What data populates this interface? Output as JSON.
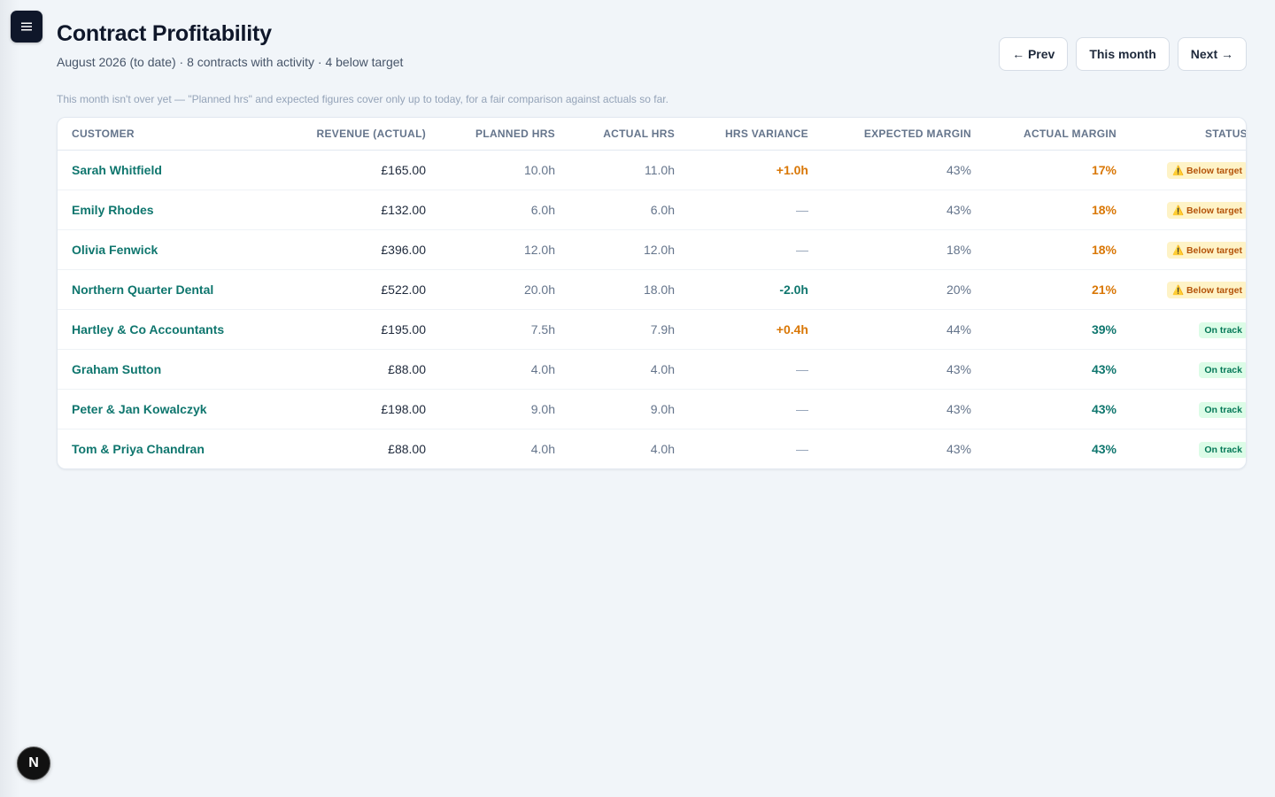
{
  "header": {
    "title": "Contract Profitability",
    "subtitle": "August 2026 (to date) · 8 contracts with activity · 4 below target",
    "note": "This month isn't over yet — \"Planned hrs\" and expected figures cover only up to today, for a fair comparison against actuals so far.",
    "menu_icon": "hamburger-menu-icon"
  },
  "nav": {
    "prev_label": "← Prev",
    "this_month_label": "This month",
    "next_label": "Next →"
  },
  "table": {
    "columns": [
      "Customer",
      "Revenue (actual)",
      "Planned hrs",
      "Actual hrs",
      "Hrs variance",
      "Expected margin",
      "Actual margin",
      "Status"
    ],
    "rows": [
      {
        "customer": "Sarah Whitfield",
        "revenue": "£165.00",
        "planned": "10.0h",
        "actual": "11.0h",
        "variance": "+1.0h",
        "expected": "43%",
        "margin": "17%",
        "status": "⚠️ Below target"
      },
      {
        "customer": "Emily Rhodes",
        "revenue": "£132.00",
        "planned": "6.0h",
        "actual": "6.0h",
        "variance": "—",
        "expected": "43%",
        "margin": "18%",
        "status": "⚠️ Below target"
      },
      {
        "customer": "Olivia Fenwick",
        "revenue": "£396.00",
        "planned": "12.0h",
        "actual": "12.0h",
        "variance": "—",
        "expected": "18%",
        "margin": "18%",
        "status": "⚠️ Below target"
      },
      {
        "customer": "Northern Quarter Dental",
        "revenue": "£522.00",
        "planned": "20.0h",
        "actual": "18.0h",
        "variance": "-2.0h",
        "expected": "20%",
        "margin": "21%",
        "status": "⚠️ Below target"
      },
      {
        "customer": "Hartley & Co Accountants",
        "revenue": "£195.00",
        "planned": "7.5h",
        "actual": "7.9h",
        "variance": "+0.4h",
        "expected": "44%",
        "margin": "39%",
        "status": "On track"
      },
      {
        "customer": "Graham Sutton",
        "revenue": "£88.00",
        "planned": "4.0h",
        "actual": "4.0h",
        "variance": "—",
        "expected": "43%",
        "margin": "43%",
        "status": "On track"
      },
      {
        "customer": "Peter & Jan Kowalczyk",
        "revenue": "£198.00",
        "planned": "9.0h",
        "actual": "9.0h",
        "variance": "—",
        "expected": "43%",
        "margin": "43%",
        "status": "On track"
      },
      {
        "customer": "Tom & Priya Chandran",
        "revenue": "£88.00",
        "planned": "4.0h",
        "actual": "4.0h",
        "variance": "—",
        "expected": "43%",
        "margin": "43%",
        "status": "On track"
      }
    ]
  },
  "user": {
    "avatar_letter": "N"
  },
  "colors": {
    "accent": "#0f766e",
    "warning": "#d97706",
    "background": "#f1f5f9"
  }
}
